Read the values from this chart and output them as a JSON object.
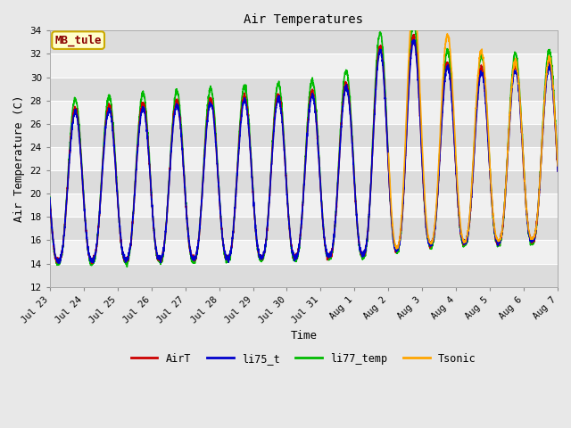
{
  "title": "Air Temperatures",
  "xlabel": "Time",
  "ylabel": "Air Temperature (C)",
  "ylim": [
    12,
    34
  ],
  "yticks": [
    12,
    14,
    16,
    18,
    20,
    22,
    24,
    26,
    28,
    30,
    32,
    34
  ],
  "annotation_text": "MB_tule",
  "annotation_color": "#8B0000",
  "annotation_bg": "#FFFFCC",
  "annotation_border": "#CCAA00",
  "series_colors": {
    "AirT": "#CC0000",
    "li75_t": "#0000CC",
    "li77_temp": "#00BB00",
    "Tsonic": "#FFA500"
  },
  "band_colors": [
    "#DCDCDC",
    "#F0F0F0"
  ],
  "fig_bg": "#E8E8E8",
  "font_family": "monospace",
  "tick_labels": [
    "Jul 23",
    "Jul 24",
    "Jul 25",
    "Jul 26",
    "Jul 27",
    "Jul 28",
    "Jul 29",
    "Jul 30",
    "Jul 31",
    "Aug 1",
    "Aug 2",
    "Aug 3",
    "Aug 4",
    "Aug 5",
    "Aug 6",
    "Aug 7"
  ]
}
